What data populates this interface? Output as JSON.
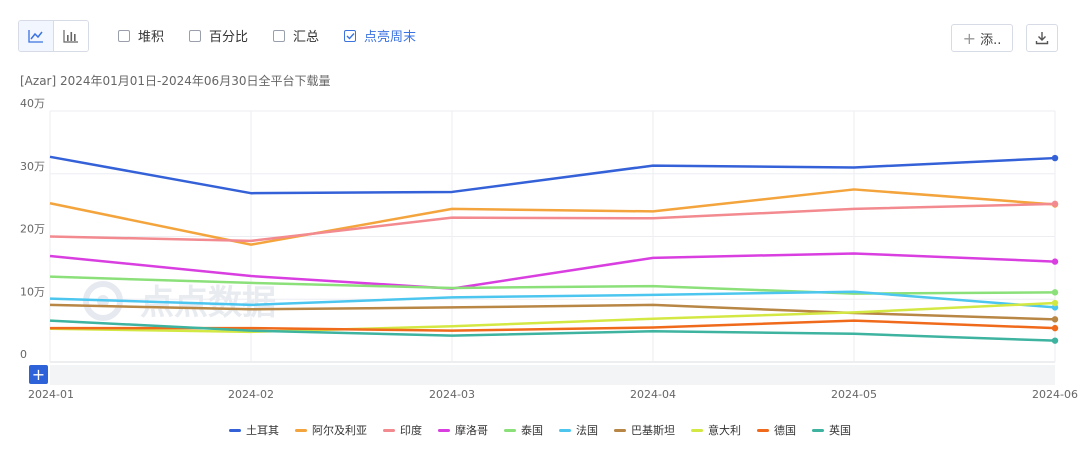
{
  "toolbar": {
    "view_toggle": [
      {
        "icon": "line-chart-icon",
        "active": true
      },
      {
        "icon": "bar-chart-icon",
        "active": false
      }
    ],
    "options": [
      {
        "label": "堆积",
        "checked": false
      },
      {
        "label": "百分比",
        "checked": false
      },
      {
        "label": "汇总",
        "checked": false
      },
      {
        "label": "点亮周末",
        "checked": true
      }
    ],
    "add_label": "添..",
    "add_icon": "plus-icon",
    "download_icon": "download-icon",
    "accent": "#3b73e0"
  },
  "watermark": "点点数据",
  "chart_data": {
    "type": "line",
    "title": "[Azar]  2024年01月01日-2024年06月30日全平台下载量",
    "x": [
      "2024-01",
      "2024-02",
      "2024-03",
      "2024-04",
      "2024-05",
      "2024-06"
    ],
    "ylim": [
      0,
      400000
    ],
    "yticks": [
      {
        "value": 0,
        "label": "0"
      },
      {
        "value": 100000,
        "label": "10万"
      },
      {
        "value": 200000,
        "label": "20万"
      },
      {
        "value": 300000,
        "label": "30万"
      },
      {
        "value": 400000,
        "label": "40万"
      }
    ],
    "grid": true,
    "legend": "bottom",
    "series": [
      {
        "name": "土耳其",
        "color": "#3461d8",
        "values": [
          327000,
          269000,
          271000,
          313000,
          310000,
          325000
        ]
      },
      {
        "name": "阿尔及利亚",
        "color": "#f4a43c",
        "values": [
          253000,
          187000,
          244000,
          240000,
          275000,
          251000
        ]
      },
      {
        "name": "印度",
        "color": "#f28a8f",
        "values": [
          200000,
          193000,
          230000,
          229000,
          244000,
          252000
        ]
      },
      {
        "name": "摩洛哥",
        "color": "#d93fe0",
        "values": [
          169000,
          137000,
          117000,
          166000,
          173000,
          160000
        ]
      },
      {
        "name": "泰国",
        "color": "#8be07a",
        "values": [
          136000,
          126000,
          118000,
          121000,
          109000,
          111000
        ]
      },
      {
        "name": "法国",
        "color": "#4cc6ef",
        "values": [
          101000,
          91000,
          103000,
          107000,
          112000,
          87000
        ]
      },
      {
        "name": "巴基斯坦",
        "color": "#b88645",
        "values": [
          91000,
          84000,
          87000,
          91000,
          78000,
          68000
        ]
      },
      {
        "name": "意大利",
        "color": "#d4e844",
        "values": [
          53000,
          48000,
          57000,
          69000,
          79000,
          94000
        ]
      },
      {
        "name": "德国",
        "color": "#f06a1c",
        "values": [
          54000,
          54000,
          50000,
          55000,
          66000,
          54000
        ]
      },
      {
        "name": "英国",
        "color": "#3db3a0",
        "values": [
          66000,
          50000,
          42000,
          49000,
          45000,
          34000
        ]
      }
    ]
  }
}
